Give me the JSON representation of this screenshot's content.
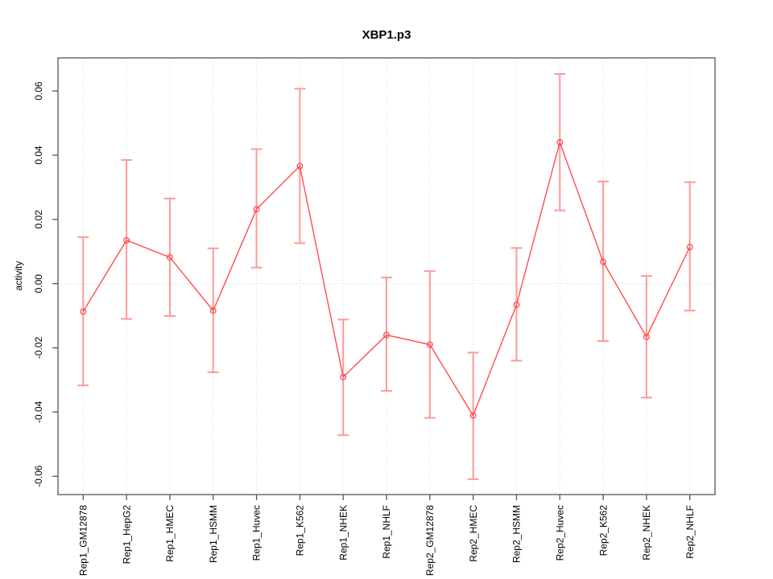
{
  "chart_data": {
    "type": "line",
    "title": "XBP1.p3",
    "xlabel": "",
    "ylabel": "activity",
    "categories": [
      "Rep1_GM12878",
      "Rep1_HepG2",
      "Rep1_HMEC",
      "Rep1_HSMM",
      "Rep1_Huvec",
      "Rep1_K562",
      "Rep1_NHEK",
      "Rep1_NHLF",
      "Rep2_GM12878",
      "Rep2_HMEC",
      "Rep2_HSMM",
      "Rep2_Huvec",
      "Rep2_K562",
      "Rep2_NHEK",
      "Rep2_NHLF"
    ],
    "series": [
      {
        "name": "activity",
        "values": [
          -0.0087,
          0.0135,
          0.0082,
          -0.0084,
          0.0232,
          0.0366,
          -0.0291,
          -0.016,
          -0.019,
          -0.0411,
          -0.0066,
          0.044,
          0.0068,
          -0.0166,
          0.0114
        ],
        "ci_lower": [
          -0.0317,
          -0.011,
          -0.0101,
          -0.0276,
          0.005,
          0.0126,
          -0.0472,
          -0.0334,
          -0.0418,
          -0.0609,
          -0.024,
          0.0228,
          -0.0179,
          -0.0355,
          -0.0084
        ],
        "ci_upper": [
          0.0145,
          0.0385,
          0.0265,
          0.011,
          0.0419,
          0.0607,
          -0.0112,
          0.0019,
          0.0039,
          -0.0215,
          0.0111,
          0.0653,
          0.0318,
          0.0024,
          0.0316
        ]
      }
    ],
    "y_ticks": [
      -0.06,
      -0.04,
      -0.02,
      0.0,
      0.02,
      0.04,
      0.06
    ],
    "y_tick_labels": [
      "-0.06",
      "-0.04",
      "-0.02",
      "0.00",
      "0.02",
      "0.04",
      "0.06"
    ],
    "ylim": [
      -0.0657,
      0.0703
    ],
    "zero_line": 0,
    "grid": {
      "vertical": "dotted at each category",
      "horizontal": "dotted at zero only"
    },
    "legend": "none",
    "marker": "open-circle",
    "colors": {
      "line": "#ff4d4d",
      "marker": "#ff4d4d",
      "error_bars": "#ff9999",
      "grid": "#d4d4d4",
      "axis": "#555555",
      "text": "#000000",
      "background": "#ffffff"
    }
  }
}
